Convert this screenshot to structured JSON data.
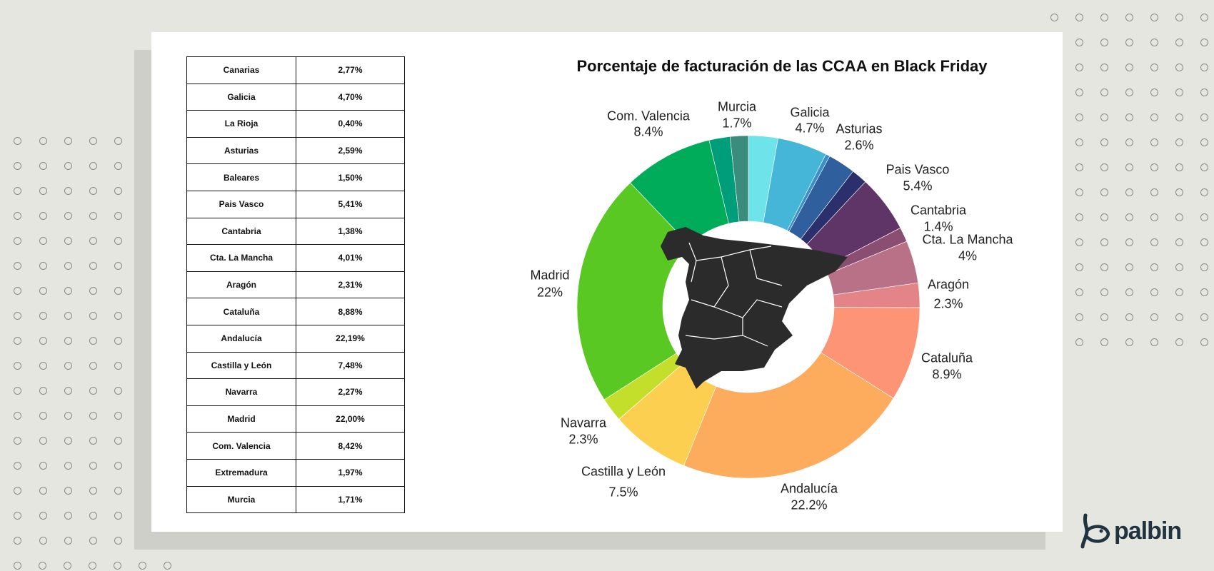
{
  "brand": {
    "logo_text": "palbin",
    "color": "#1f3340"
  },
  "table": {
    "rows": [
      [
        "Canarias",
        "2,77%"
      ],
      [
        "Galicia",
        "4,70%"
      ],
      [
        "La Rioja",
        "0,40%"
      ],
      [
        "Asturias",
        "2,59%"
      ],
      [
        "Baleares",
        "1,50%"
      ],
      [
        "Pais Vasco",
        "5,41%"
      ],
      [
        "Cantabria",
        "1,38%"
      ],
      [
        "Cta. La Mancha",
        "4,01%"
      ],
      [
        "Aragón",
        "2,31%"
      ],
      [
        "Cataluña",
        "8,88%"
      ],
      [
        "Andalucía",
        "22,19%"
      ],
      [
        "Castilla y León",
        "7,48%"
      ],
      [
        "Navarra",
        "2,27%"
      ],
      [
        "Madrid",
        "22,00%"
      ],
      [
        "Com. Valencia",
        "8,42%"
      ],
      [
        "Extremadura",
        "1,97%"
      ],
      [
        "Murcia",
        "1,71%"
      ]
    ]
  },
  "chart_data": {
    "type": "pie",
    "variant": "donut",
    "title": "Porcentaje de facturación de las CCAA en Black Friday",
    "center_image": "spain-map",
    "slices": [
      {
        "name": "Canarias",
        "value": 2.77,
        "color": "#6ee3ea",
        "label": ""
      },
      {
        "name": "Galicia",
        "value": 4.7,
        "color": "#45b6d8",
        "label": "4.7%"
      },
      {
        "name": "La Rioja",
        "value": 0.4,
        "color": "#3a8fc8",
        "label": ""
      },
      {
        "name": "Asturias",
        "value": 2.59,
        "color": "#2f5f9c",
        "label": "2.6%"
      },
      {
        "name": "Baleares",
        "value": 1.5,
        "color": "#2b2f6b",
        "label": ""
      },
      {
        "name": "Pais Vasco",
        "value": 5.41,
        "color": "#5e3566",
        "label": "5.4%"
      },
      {
        "name": "Cantabria",
        "value": 1.38,
        "color": "#8a4e72",
        "label": "1.4%"
      },
      {
        "name": "Cta. La Mancha",
        "value": 4.01,
        "color": "#b87186",
        "label": "4%"
      },
      {
        "name": "Aragón",
        "value": 2.31,
        "color": "#e38489",
        "label": "2.3%"
      },
      {
        "name": "Cataluña",
        "value": 8.88,
        "color": "#fd9475",
        "label": "8.9%"
      },
      {
        "name": "Andalucía",
        "value": 22.19,
        "color": "#fdab5c",
        "label": "22.2%"
      },
      {
        "name": "Castilla y León",
        "value": 7.48,
        "color": "#fdcf50",
        "label": "7.5%"
      },
      {
        "name": "Navarra",
        "value": 2.27,
        "color": "#c3df2b",
        "label": "2.3%"
      },
      {
        "name": "Madrid",
        "value": 22.0,
        "color": "#5ac823",
        "label": "22%"
      },
      {
        "name": "Com. Valencia",
        "value": 8.42,
        "color": "#00ab5a",
        "label": "8.4%"
      },
      {
        "name": "Extremadura",
        "value": 1.97,
        "color": "#009d7a",
        "label": ""
      },
      {
        "name": "Murcia",
        "value": 1.71,
        "color": "#3a8c7c",
        "label": "1.7%"
      }
    ]
  }
}
